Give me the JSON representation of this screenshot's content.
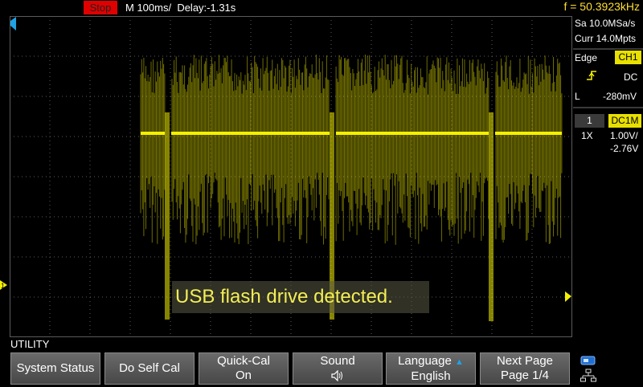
{
  "status": {
    "state": "Stop",
    "timebase": "M 100ms/",
    "delay": "Delay:-1.31s",
    "frequency": "f = 50.3923kHz"
  },
  "acquisition": {
    "sample_rate": "Sa 10.0MSa/s",
    "memory_depth": "Curr 14.0Mpts"
  },
  "trigger": {
    "type": "Edge",
    "source": "CH1",
    "slope_icon": "rising-edge-icon",
    "coupling": "DC",
    "level_label": "L",
    "level": "-280mV"
  },
  "channel1": {
    "number": "1",
    "coupling_impedance": "DC1M",
    "probe": "1X",
    "scale": "1.00V/",
    "offset": "-2.76V"
  },
  "message": "USB flash drive detected.",
  "menu": {
    "title": "UTILITY",
    "buttons": [
      {
        "label": "System Status",
        "value": ""
      },
      {
        "label": "Do Self Cal",
        "value": ""
      },
      {
        "label": "Quick-Cal",
        "value": "On"
      },
      {
        "label": "Sound",
        "value": ""
      },
      {
        "label": "Language",
        "value": "English"
      },
      {
        "label": "Next Page",
        "value": "Page 1/4"
      }
    ]
  },
  "colors": {
    "channel1": "#f5f000",
    "stop": "#e00000",
    "frequency": "#ffdd33",
    "trigger_marker": "#1fa2e6",
    "grid": "#5a5a5a"
  },
  "icons": {
    "sound": "speaker-icon",
    "usb": "usb-icon",
    "network": "network-icon"
  }
}
